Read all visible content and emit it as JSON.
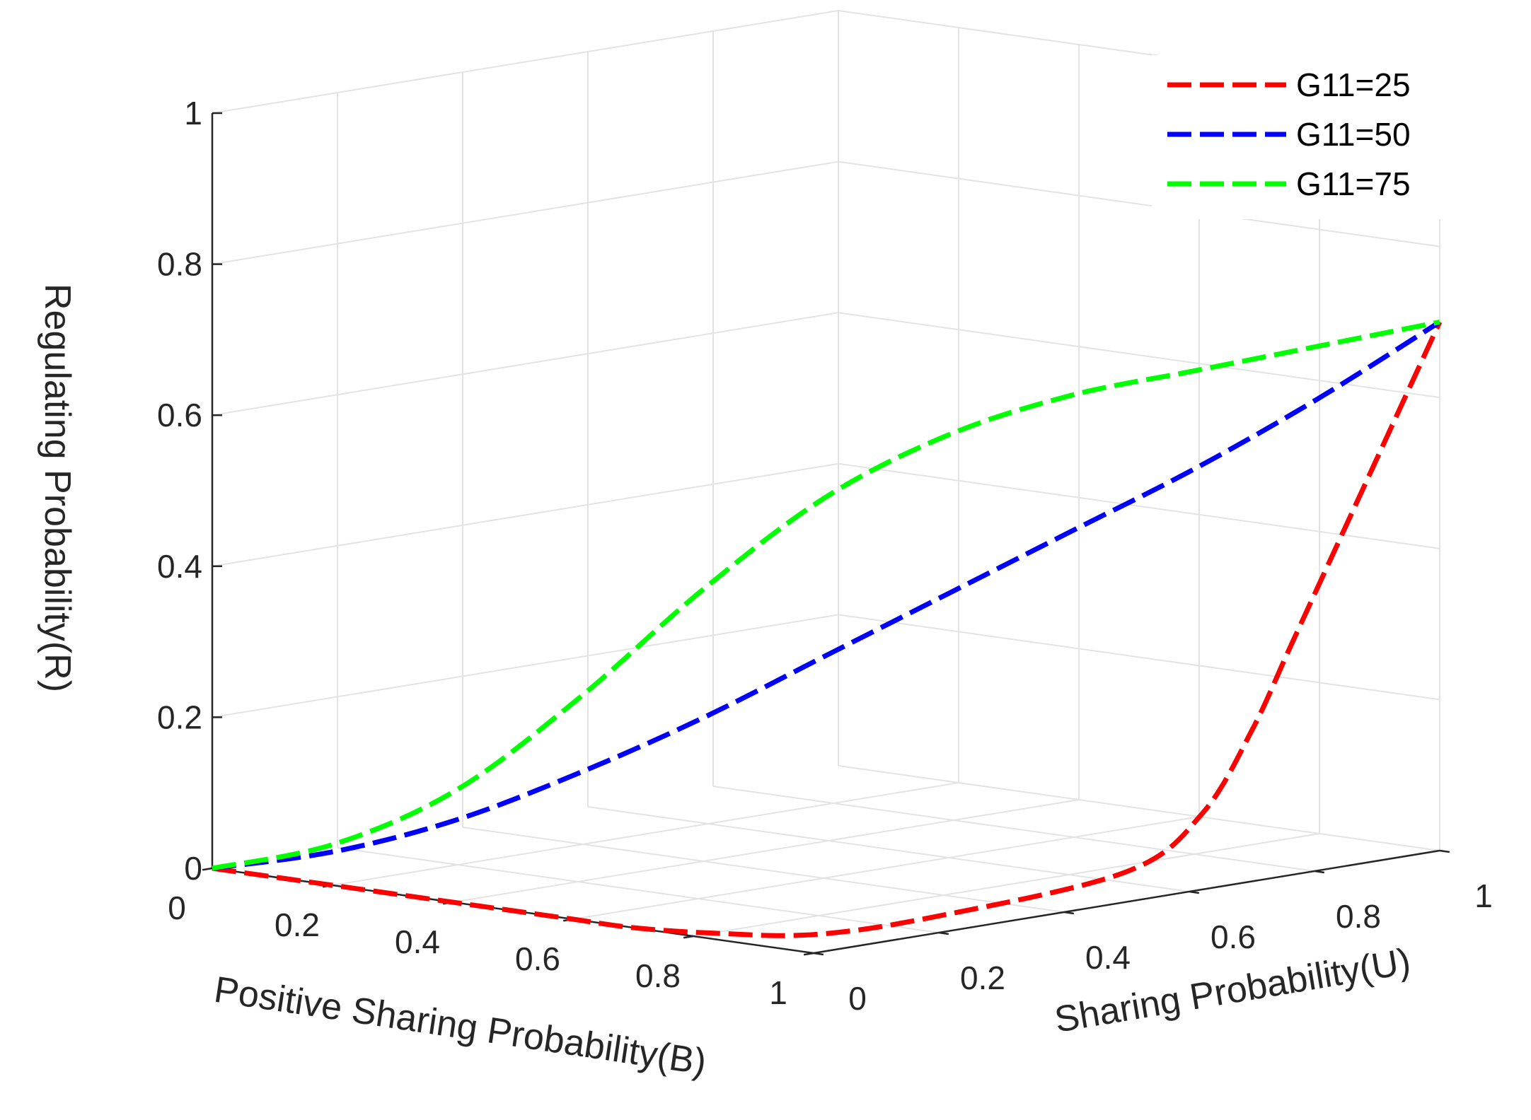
{
  "chart_data": {
    "type": "line",
    "projection": "3d",
    "xlabel": "Positive Sharing Probability(B)",
    "ylabel": "Sharing Probability(U)",
    "zlabel": "Regulating Probability(R)",
    "xlim": [
      0,
      1
    ],
    "ylim": [
      0,
      1
    ],
    "zlim": [
      0,
      1
    ],
    "xticks": [
      "0",
      "0.2",
      "0.4",
      "0.6",
      "0.8",
      "1"
    ],
    "yticks": [
      "0",
      "0.2",
      "0.4",
      "0.6",
      "0.8",
      "1"
    ],
    "zticks": [
      "0",
      "0.2",
      "0.4",
      "0.6",
      "0.8",
      "1"
    ],
    "grid": true,
    "legend_position": "top-right",
    "series": [
      {
        "name": "G11=25",
        "color": "#ff0000",
        "linestyle": "dashed",
        "points": [
          [
            0.0,
            0.0,
            0.0
          ],
          [
            0.1,
            0.0,
            0.0
          ],
          [
            0.2,
            0.0,
            0.0
          ],
          [
            0.3,
            0.0,
            0.0
          ],
          [
            0.4,
            0.0,
            0.0
          ],
          [
            0.5,
            0.0,
            0.0
          ],
          [
            0.6,
            0.0,
            0.0
          ],
          [
            0.7,
            0.0,
            0.0
          ],
          [
            0.8,
            0.03,
            0.0
          ],
          [
            0.9,
            0.1,
            0.0
          ],
          [
            0.95,
            0.25,
            0.01
          ],
          [
            1.0,
            0.5,
            0.04
          ],
          [
            1.0,
            0.62,
            0.1
          ],
          [
            1.0,
            0.7,
            0.2
          ],
          [
            1.0,
            0.76,
            0.3
          ],
          [
            1.0,
            0.82,
            0.4
          ],
          [
            1.0,
            0.88,
            0.5
          ],
          [
            1.0,
            0.94,
            0.6
          ],
          [
            1.0,
            1.0,
            0.7
          ]
        ]
      },
      {
        "name": "G11=50",
        "color": "#0000ff",
        "linestyle": "dashed",
        "points": [
          [
            0.0,
            0.0,
            0.0
          ],
          [
            0.1,
            0.1,
            0.02
          ],
          [
            0.2,
            0.2,
            0.06
          ],
          [
            0.3,
            0.3,
            0.12
          ],
          [
            0.4,
            0.4,
            0.19
          ],
          [
            0.5,
            0.5,
            0.27
          ],
          [
            0.6,
            0.6,
            0.35
          ],
          [
            0.7,
            0.7,
            0.43
          ],
          [
            0.8,
            0.8,
            0.51
          ],
          [
            0.9,
            0.9,
            0.6
          ],
          [
            1.0,
            1.0,
            0.7
          ]
        ]
      },
      {
        "name": "G11=75",
        "color": "#00ff00",
        "linestyle": "dashed",
        "points": [
          [
            0.0,
            0.0,
            0.0
          ],
          [
            0.1,
            0.1,
            0.03
          ],
          [
            0.2,
            0.2,
            0.1
          ],
          [
            0.3,
            0.3,
            0.22
          ],
          [
            0.4,
            0.4,
            0.36
          ],
          [
            0.5,
            0.5,
            0.48
          ],
          [
            0.6,
            0.6,
            0.56
          ],
          [
            0.7,
            0.7,
            0.61
          ],
          [
            0.8,
            0.8,
            0.64
          ],
          [
            0.9,
            0.9,
            0.67
          ],
          [
            1.0,
            1.0,
            0.7
          ]
        ]
      }
    ]
  }
}
